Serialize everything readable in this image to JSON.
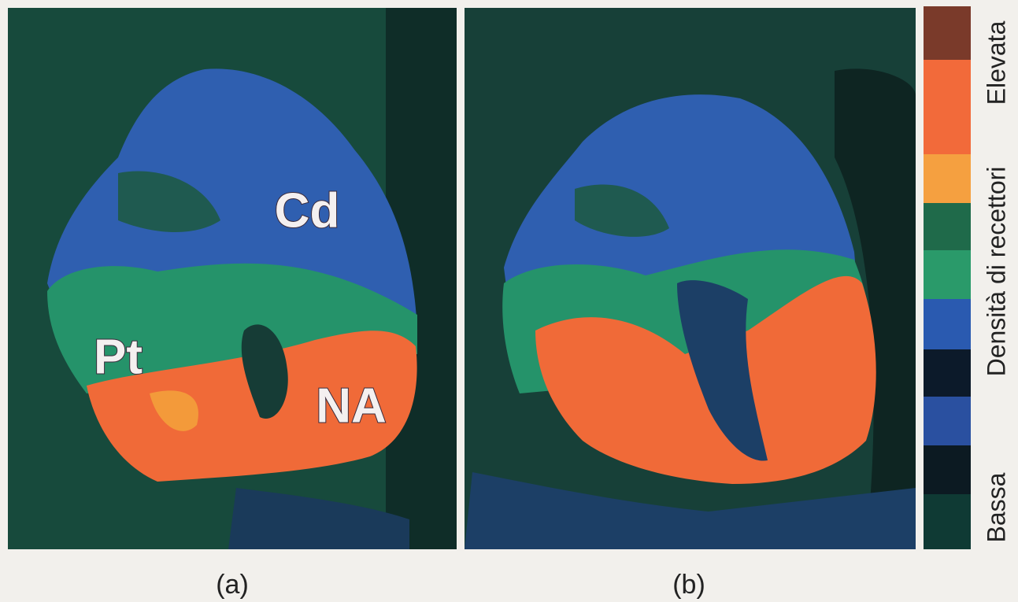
{
  "panels": [
    {
      "label": "(a)",
      "regions": [
        "Cd",
        "Pt",
        "NA"
      ]
    },
    {
      "label": "(b)"
    }
  ],
  "legend": {
    "high": "Elevata",
    "title": "Densità di recettori",
    "low": "Bassa"
  }
}
